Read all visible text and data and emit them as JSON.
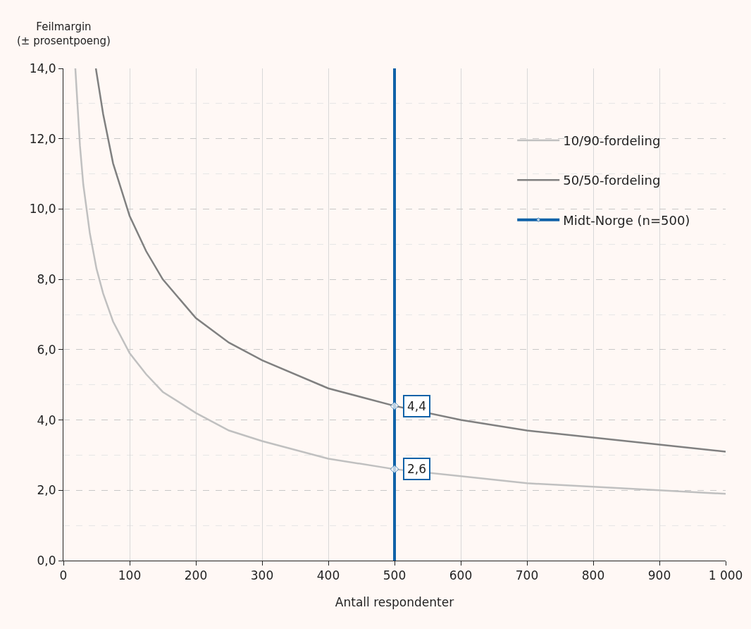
{
  "chart_data": {
    "type": "line",
    "ylabel": "Feilmargin\n(± prosentpoeng)",
    "xlabel": "Antall respondenter",
    "xlim": [
      0,
      1000
    ],
    "xticks": [
      0,
      100,
      200,
      300,
      400,
      500,
      600,
      700,
      800,
      900,
      {
        "value": 1000,
        "label": "1 000"
      }
    ],
    "ylim": [
      0,
      14
    ],
    "yticks": [
      {
        "value": 0,
        "label": "0,0"
      },
      {
        "value": 2,
        "label": "2,0"
      },
      {
        "value": 4,
        "label": "4,0"
      },
      {
        "value": 6,
        "label": "6,0"
      },
      {
        "value": 8,
        "label": "8,0"
      },
      {
        "value": 10,
        "label": "10,0"
      },
      {
        "value": 12,
        "label": "12,0"
      },
      {
        "value": 14,
        "label": "14,0"
      }
    ],
    "grid": true,
    "legend": "top right",
    "series": [
      {
        "name": "10/90-fordeling",
        "color": "#c0c0c0",
        "marker": "none",
        "x": [
          18,
          25,
          30,
          40,
          50,
          60,
          75,
          100,
          125,
          150,
          200,
          250,
          300,
          400,
          500,
          600,
          700,
          800,
          900,
          1000
        ],
        "values": [
          14,
          11.8,
          10.7,
          9.3,
          8.3,
          7.6,
          6.8,
          5.9,
          5.3,
          4.8,
          4.2,
          3.7,
          3.4,
          2.9,
          2.6,
          2.4,
          2.2,
          2.1,
          2.0,
          1.9
        ]
      },
      {
        "name": "50/50-fordeling",
        "color": "#808080",
        "marker": "none",
        "x": [
          49,
          60,
          75,
          100,
          125,
          150,
          200,
          250,
          300,
          400,
          500,
          600,
          700,
          800,
          900,
          1000
        ],
        "values": [
          14,
          12.7,
          11.3,
          9.8,
          8.8,
          8.0,
          6.9,
          6.2,
          5.7,
          4.9,
          4.4,
          4.0,
          3.7,
          3.5,
          3.3,
          3.1
        ]
      },
      {
        "name": "Midt-Norge (n=500)",
        "color": "#1062a8",
        "marker": "diamond",
        "x": [
          500,
          500,
          500,
          500
        ],
        "values": [
          0,
          2.6,
          4.4,
          14
        ],
        "value_labels": [
          null,
          "2,6",
          "4,4",
          null
        ]
      }
    ]
  }
}
